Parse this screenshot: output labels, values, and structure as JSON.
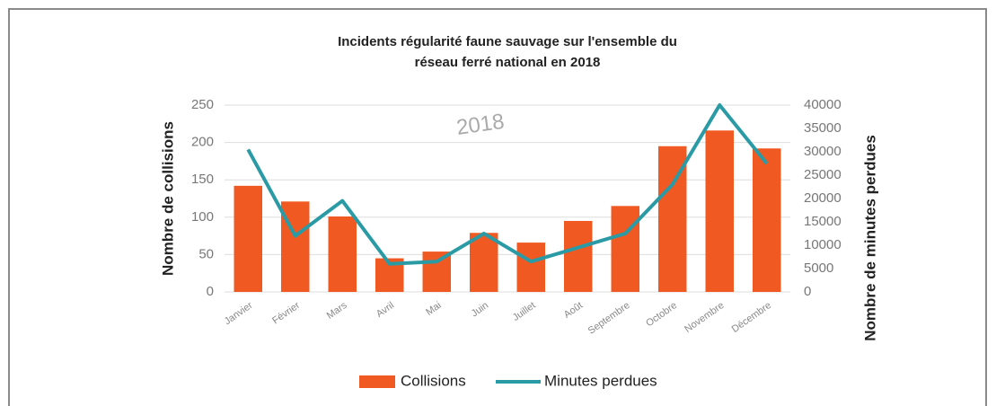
{
  "chart_data": {
    "type": "bar_line",
    "title": [
      "Incidents régularité faune sauvage sur l'ensemble du",
      "réseau ferré national en 2018"
    ],
    "annotation": "2018",
    "ylabel": "Nombre de collisions",
    "y2label": "Nombre de minutes perdues",
    "categories": [
      "Janvier",
      "Février",
      "Mars",
      "Avril",
      "Mai",
      "Juin",
      "Juillet",
      "Août",
      "Septembre",
      "Octobre",
      "Novembre",
      "Décembre"
    ],
    "series": [
      {
        "name": "Collisions",
        "type": "bar",
        "color": "#f05a22",
        "values": [
          142,
          121,
          101,
          45,
          54,
          79,
          66,
          95,
          115,
          195,
          216,
          192
        ]
      },
      {
        "name": "Minutes perdues",
        "type": "line",
        "axis": "y2",
        "color": "#2a9aa5",
        "values": [
          30500,
          12000,
          19500,
          6000,
          6500,
          12500,
          6500,
          9500,
          12500,
          23000,
          40000,
          27500
        ]
      }
    ],
    "ylim": [
      0,
      250
    ],
    "yticks": [
      0,
      50,
      100,
      150,
      200,
      250
    ],
    "y2lim": [
      0,
      40000
    ],
    "y2ticks": [
      0,
      5000,
      10000,
      15000,
      20000,
      25000,
      30000,
      35000,
      40000
    ],
    "grid": true,
    "legend": "bottom"
  }
}
